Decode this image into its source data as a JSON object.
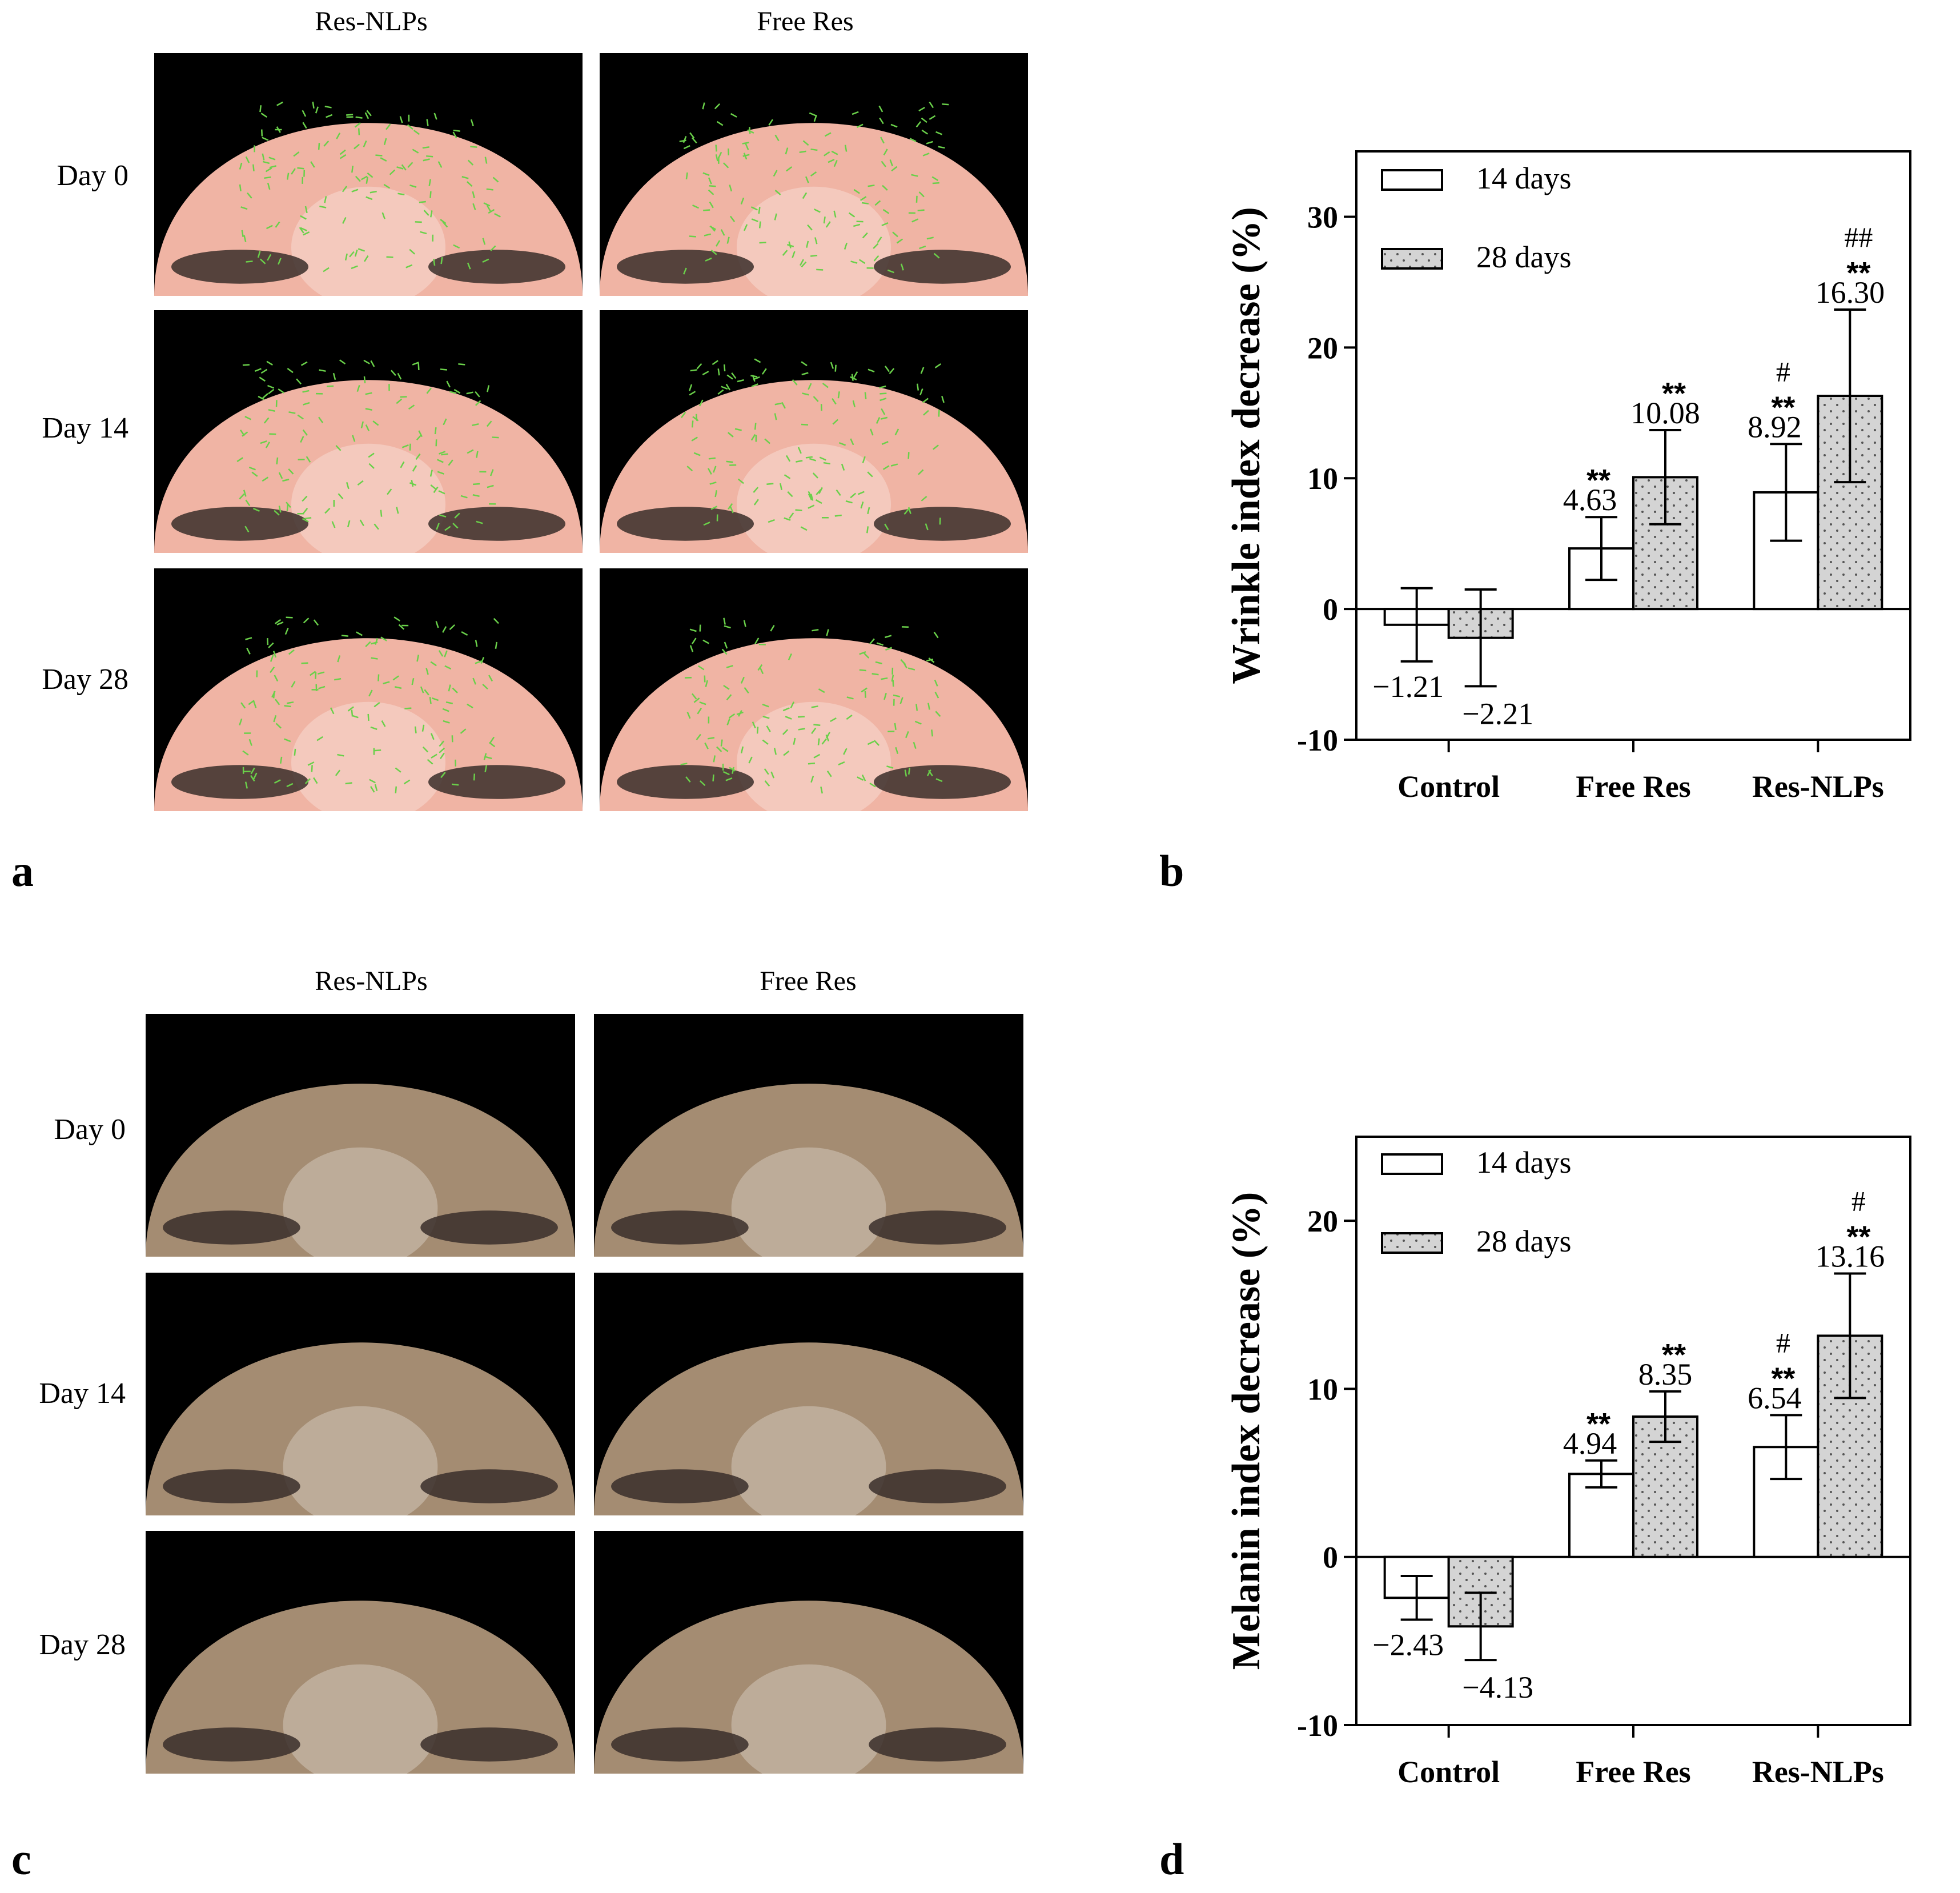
{
  "panel_labels": {
    "a": "a",
    "b": "b",
    "c": "c",
    "d": "d"
  },
  "photo_panels": [
    {
      "id": "a",
      "column_headers": [
        "Res-NLPs",
        "Free Res"
      ],
      "row_labels": [
        "Day 0",
        "Day 14",
        "Day 28"
      ],
      "skin_color": "#f0b4a4",
      "overlay_color": "#6ad04a"
    },
    {
      "id": "c",
      "column_headers": [
        "Res-NLPs",
        "Free Res"
      ],
      "row_labels": [
        "Day 0",
        "Day 14",
        "Day 28"
      ],
      "skin_color": "#a48c72",
      "overlay_color": null
    }
  ],
  "chart_data": [
    {
      "id": "b",
      "type": "bar",
      "ylabel": "Wrinkle index decrease (%)",
      "xlabel": "",
      "categories": [
        "Control",
        "Free Res",
        "Res-NLPs"
      ],
      "ylim": [
        -10,
        35
      ],
      "yticks": [
        -10,
        0,
        10,
        20,
        30
      ],
      "legend_position": "top-left",
      "grid": false,
      "series": [
        {
          "name": "14 days",
          "fill": "#ffffff",
          "pattern": "none",
          "values": [
            -1.21,
            4.63,
            8.92
          ],
          "errors": [
            2.8,
            2.4,
            3.7
          ],
          "value_labels": [
            "−1.21",
            "4.63",
            "8.92"
          ],
          "sig": [
            "",
            "**",
            "**"
          ],
          "hash": [
            "",
            "",
            "#"
          ]
        },
        {
          "name": "28 days",
          "fill": "#d4d4d4",
          "pattern": "dots",
          "values": [
            -2.21,
            10.08,
            16.3
          ],
          "errors": [
            3.7,
            3.6,
            6.6
          ],
          "value_labels": [
            "−2.21",
            "10.08",
            "16.30"
          ],
          "sig": [
            "",
            "**",
            "**"
          ],
          "hash": [
            "",
            "",
            "##"
          ]
        }
      ]
    },
    {
      "id": "d",
      "type": "bar",
      "ylabel": "Melanin index decrease (%)",
      "xlabel": "",
      "categories": [
        "Control",
        "Free Res",
        "Res-NLPs"
      ],
      "ylim": [
        -10,
        25
      ],
      "yticks": [
        -10,
        0,
        10,
        20
      ],
      "legend_position": "top-left",
      "grid": false,
      "series": [
        {
          "name": "14 days",
          "fill": "#ffffff",
          "pattern": "none",
          "values": [
            -2.43,
            4.94,
            6.54
          ],
          "errors": [
            1.3,
            0.8,
            1.9
          ],
          "value_labels": [
            "−2.43",
            "4.94",
            "6.54"
          ],
          "sig": [
            "",
            "**",
            "**"
          ],
          "hash": [
            "",
            "",
            "#"
          ]
        },
        {
          "name": "28 days",
          "fill": "#d4d4d4",
          "pattern": "dots",
          "values": [
            -4.13,
            8.35,
            13.16
          ],
          "errors": [
            2.0,
            1.5,
            3.7
          ],
          "value_labels": [
            "−4.13",
            "8.35",
            "13.16"
          ],
          "sig": [
            "",
            "**",
            "**"
          ],
          "hash": [
            "",
            "",
            "#"
          ]
        }
      ]
    }
  ]
}
